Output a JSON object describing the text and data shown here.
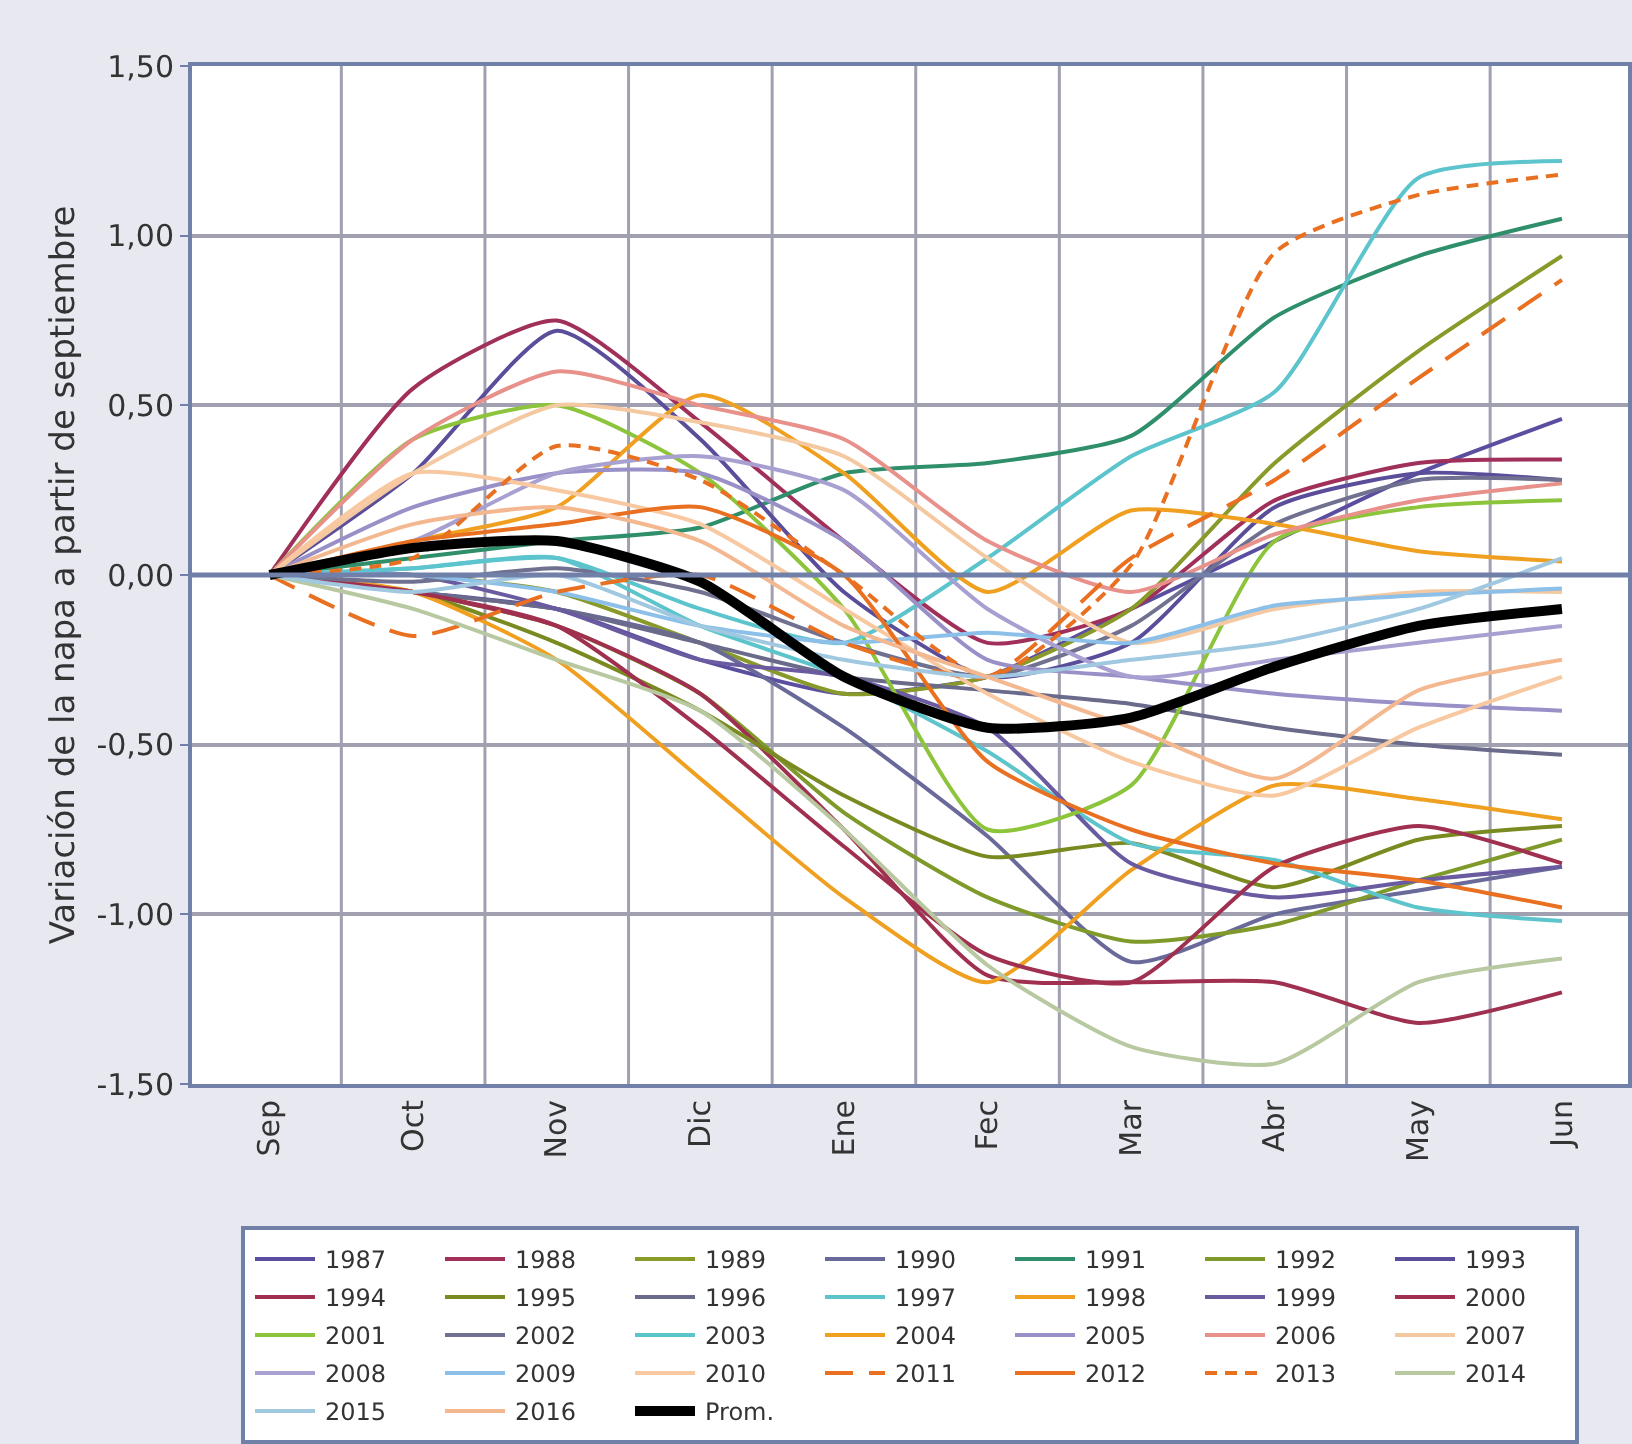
{
  "chart_data": {
    "type": "line",
    "ylabel": "Variación de la napa a partir de septiembre",
    "categories": [
      "Sep",
      "Oct",
      "Nov",
      "Dic",
      "Ene",
      "Fec",
      "Mar",
      "Abr",
      "May",
      "Jun"
    ],
    "ylim": [
      -1.5,
      1.5
    ],
    "yticks": [
      {
        "value": -1.5,
        "label": "-1,50"
      },
      {
        "value": -1.0,
        "label": "-1,00"
      },
      {
        "value": -0.5,
        "label": "-0,50"
      },
      {
        "value": 0,
        "label": "0,00"
      },
      {
        "value": 0.5,
        "label": "0,50"
      },
      {
        "value": 1.0,
        "label": "1,00"
      },
      {
        "value": 1.5,
        "label": "1,50"
      }
    ],
    "grid": true,
    "legend": "bottom",
    "ref_lines": [
      {
        "axis": "y",
        "value": 0,
        "color": "#7080a8"
      }
    ],
    "marker": "none",
    "line_style": "solid",
    "series": [
      {
        "name": "1987",
        "color": "#5b4ea0",
        "values": [
          0,
          -0.05,
          -0.1,
          -0.25,
          -0.35,
          -0.3,
          -0.1,
          0.1,
          0.3,
          0.46
        ]
      },
      {
        "name": "1988",
        "color": "#a0305a",
        "values": [
          0,
          0.55,
          0.75,
          0.45,
          0.1,
          -0.2,
          -0.1,
          0.22,
          0.33,
          0.34
        ]
      },
      {
        "name": "1989",
        "color": "#8a9a2a",
        "values": [
          0,
          0.0,
          -0.05,
          -0.2,
          -0.35,
          -0.3,
          -0.1,
          0.33,
          0.66,
          0.94
        ]
      },
      {
        "name": "1990",
        "color": "#6a6a9a",
        "values": [
          0,
          -0.05,
          -0.1,
          -0.2,
          -0.45,
          -0.77,
          -1.14,
          -1.0,
          -0.93,
          -0.86
        ]
      },
      {
        "name": "1991",
        "color": "#2e8f6a",
        "values": [
          0,
          0.05,
          0.1,
          0.14,
          0.3,
          0.33,
          0.41,
          0.76,
          0.94,
          1.05
        ]
      },
      {
        "name": "1992",
        "color": "#7f9a2a",
        "values": [
          0,
          -0.05,
          -0.15,
          -0.35,
          -0.7,
          -0.95,
          -1.08,
          -1.03,
          -0.9,
          -0.78
        ]
      },
      {
        "name": "1993",
        "color": "#5a4e9a",
        "values": [
          0,
          0.3,
          0.72,
          0.4,
          -0.05,
          -0.3,
          -0.2,
          0.2,
          0.3,
          0.28
        ]
      },
      {
        "name": "1994",
        "color": "#a0304f",
        "values": [
          0,
          -0.05,
          -0.15,
          -0.35,
          -0.75,
          -1.18,
          -1.2,
          -1.2,
          -1.32,
          -1.23
        ]
      },
      {
        "name": "1995",
        "color": "#7a8a20",
        "values": [
          0,
          -0.05,
          -0.2,
          -0.4,
          -0.65,
          -0.83,
          -0.79,
          -0.92,
          -0.78,
          -0.74
        ]
      },
      {
        "name": "1996",
        "color": "#6a6a8a",
        "values": [
          0,
          -0.05,
          -0.1,
          -0.2,
          -0.3,
          -0.34,
          -0.38,
          -0.45,
          -0.5,
          -0.53
        ]
      },
      {
        "name": "1997",
        "color": "#5ec4cc",
        "values": [
          0,
          0.02,
          0.05,
          -0.15,
          -0.3,
          -0.52,
          -0.79,
          -0.84,
          -0.98,
          -1.02
        ]
      },
      {
        "name": "1998",
        "color": "#f0a020",
        "values": [
          0,
          -0.05,
          -0.25,
          -0.6,
          -0.95,
          -1.2,
          -0.87,
          -0.62,
          -0.66,
          -0.72
        ]
      },
      {
        "name": "1999",
        "color": "#6a5aa0",
        "values": [
          0,
          0.0,
          -0.1,
          -0.25,
          -0.3,
          -0.45,
          -0.85,
          -0.95,
          -0.9,
          -0.86
        ]
      },
      {
        "name": "2000",
        "color": "#a03050",
        "values": [
          0,
          -0.05,
          -0.15,
          -0.45,
          -0.8,
          -1.12,
          -1.2,
          -0.86,
          -0.74,
          -0.85
        ]
      },
      {
        "name": "2001",
        "color": "#8cc43c",
        "values": [
          0,
          0.4,
          0.5,
          0.3,
          -0.1,
          -0.75,
          -0.62,
          0.1,
          0.2,
          0.22
        ]
      },
      {
        "name": "2002",
        "color": "#707090",
        "values": [
          0,
          -0.02,
          0.02,
          -0.05,
          -0.2,
          -0.3,
          -0.15,
          0.15,
          0.28,
          0.28
        ]
      },
      {
        "name": "2003",
        "color": "#5cc4cc",
        "values": [
          0,
          0.02,
          0.05,
          -0.1,
          -0.2,
          0.05,
          0.35,
          0.54,
          1.17,
          1.22
        ]
      },
      {
        "name": "2004",
        "color": "#f0a020",
        "values": [
          0,
          0.1,
          0.2,
          0.53,
          0.3,
          -0.05,
          0.19,
          0.15,
          0.07,
          0.04
        ]
      },
      {
        "name": "2005",
        "color": "#9a90c8",
        "values": [
          0,
          0.2,
          0.3,
          0.3,
          0.1,
          -0.25,
          -0.3,
          -0.35,
          -0.38,
          -0.4
        ]
      },
      {
        "name": "2006",
        "color": "#e8908a",
        "values": [
          0,
          0.4,
          0.6,
          0.5,
          0.4,
          0.1,
          -0.05,
          0.12,
          0.22,
          0.27
        ]
      },
      {
        "name": "2007",
        "color": "#f4c8a0",
        "values": [
          0,
          0.3,
          0.5,
          0.45,
          0.35,
          0.05,
          -0.2,
          -0.1,
          -0.05,
          -0.05
        ]
      },
      {
        "name": "2008",
        "color": "#a8a0d0",
        "values": [
          0,
          0.1,
          0.3,
          0.35,
          0.25,
          -0.1,
          -0.3,
          -0.25,
          -0.2,
          -0.15
        ]
      },
      {
        "name": "2009",
        "color": "#8cc0e8",
        "values": [
          0,
          0.0,
          -0.05,
          -0.15,
          -0.2,
          -0.17,
          -0.2,
          -0.09,
          -0.06,
          -0.04
        ]
      },
      {
        "name": "2010",
        "color": "#f8c8a0",
        "values": [
          0,
          0.3,
          0.25,
          0.15,
          -0.1,
          -0.35,
          -0.55,
          -0.65,
          -0.45,
          -0.3
        ]
      },
      {
        "name": "2011",
        "color": "#e87020",
        "line_style": "dashed",
        "values": [
          0,
          -0.18,
          -0.05,
          0.0,
          -0.2,
          -0.3,
          0.05,
          0.28,
          0.58,
          0.87
        ]
      },
      {
        "name": "2012",
        "color": "#e87020",
        "values": [
          0,
          0.1,
          0.15,
          0.2,
          0.0,
          -0.55,
          -0.75,
          -0.85,
          -0.9,
          -0.98
        ]
      },
      {
        "name": "2013",
        "color": "#e87020",
        "line_style": "dotted",
        "values": [
          0,
          0.05,
          0.38,
          0.28,
          0.0,
          -0.3,
          0.03,
          0.95,
          1.12,
          1.18
        ]
      },
      {
        "name": "2014",
        "color": "#b8c8a0",
        "values": [
          0,
          -0.1,
          -0.25,
          -0.4,
          -0.75,
          -1.15,
          -1.39,
          -1.44,
          -1.2,
          -1.13
        ]
      },
      {
        "name": "2015",
        "color": "#a0c8e0",
        "values": [
          0,
          -0.05,
          0.0,
          -0.15,
          -0.25,
          -0.3,
          -0.25,
          -0.2,
          -0.1,
          0.05
        ]
      },
      {
        "name": "2016",
        "color": "#f4b890",
        "values": [
          0,
          0.15,
          0.2,
          0.1,
          -0.15,
          -0.3,
          -0.45,
          -0.6,
          -0.34,
          -0.25
        ]
      },
      {
        "name": "Prom.",
        "color": "#000000",
        "values": [
          0,
          0.08,
          0.1,
          -0.02,
          -0.3,
          -0.45,
          -0.42,
          -0.27,
          -0.15,
          -0.1
        ]
      }
    ]
  }
}
